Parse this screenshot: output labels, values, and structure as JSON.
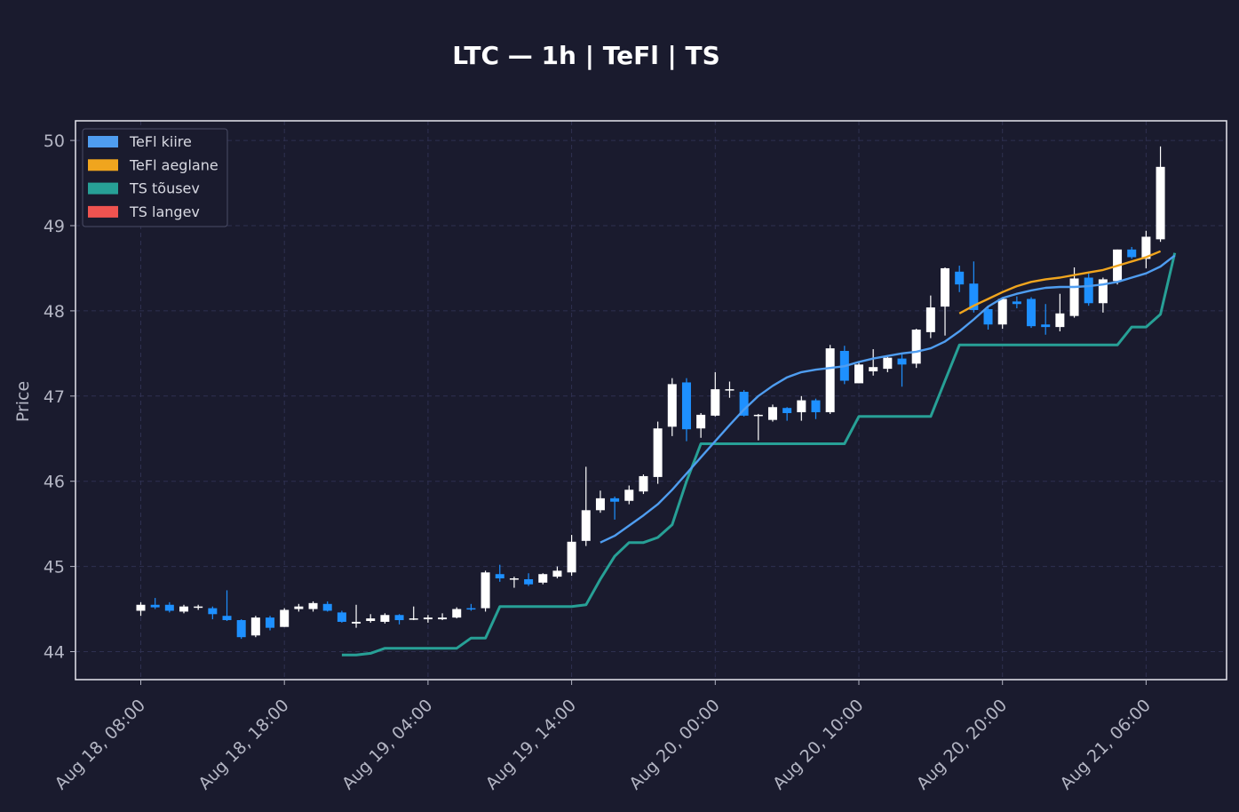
{
  "chart_data": {
    "type": "candlestick",
    "title": "LTC — 1h  |  TeFl  |  TS",
    "xlabel": "",
    "ylabel": "Price",
    "ylim": [
      43.67,
      50.23
    ],
    "yticks": [
      44,
      45,
      46,
      47,
      48,
      49,
      50
    ],
    "x_start": "Aug 18, 08:00",
    "x_step_hours": 1,
    "xticks": [
      {
        "label": "Aug 18, 08:00",
        "index": 0
      },
      {
        "label": "Aug 18, 18:00",
        "index": 10
      },
      {
        "label": "Aug 19, 04:00",
        "index": 20
      },
      {
        "label": "Aug 19, 14:00",
        "index": 30
      },
      {
        "label": "Aug 20, 00:00",
        "index": 40
      },
      {
        "label": "Aug 20, 10:00",
        "index": 50
      },
      {
        "label": "Aug 20, 20:00",
        "index": 60
      },
      {
        "label": "Aug 21, 06:00",
        "index": 70
      }
    ],
    "grid": true,
    "legend_position": "top-left",
    "colors": {
      "background": "#1a1b2e",
      "up_candle": "#ffffff",
      "down_candle": "#1e90ff",
      "tefl_fast": "#4f9df0",
      "tefl_slow": "#f0a51e",
      "ts_up": "#27a096",
      "ts_down": "#ef5350"
    },
    "legend": [
      {
        "label": "TeFl kiire",
        "color": "#4f9df0"
      },
      {
        "label": "TeFl aeglane",
        "color": "#f0a51e"
      },
      {
        "label": "TS tõusev",
        "color": "#27a096"
      },
      {
        "label": "TS langev",
        "color": "#ef5350"
      }
    ],
    "candles": [
      [
        44.48,
        44.58,
        44.42,
        44.55
      ],
      [
        44.55,
        44.63,
        44.5,
        44.52
      ],
      [
        44.55,
        44.58,
        44.46,
        44.48
      ],
      [
        44.47,
        44.55,
        44.45,
        44.53
      ],
      [
        44.52,
        44.55,
        44.49,
        44.53
      ],
      [
        44.51,
        44.53,
        44.38,
        44.44
      ],
      [
        44.42,
        44.72,
        44.36,
        44.37
      ],
      [
        44.37,
        44.38,
        44.15,
        44.17
      ],
      [
        44.19,
        44.42,
        44.17,
        44.4
      ],
      [
        44.4,
        44.42,
        44.25,
        44.28
      ],
      [
        44.29,
        44.51,
        44.29,
        44.49
      ],
      [
        44.5,
        44.56,
        44.47,
        44.53
      ],
      [
        44.5,
        44.59,
        44.47,
        44.57
      ],
      [
        44.56,
        44.59,
        44.47,
        44.48
      ],
      [
        44.46,
        44.48,
        44.34,
        44.35
      ],
      [
        44.33,
        44.55,
        44.28,
        44.35
      ],
      [
        44.36,
        44.44,
        44.34,
        44.39
      ],
      [
        44.35,
        44.45,
        44.33,
        44.43
      ],
      [
        44.43,
        44.44,
        44.32,
        44.37
      ],
      [
        44.38,
        44.53,
        44.37,
        44.39
      ],
      [
        44.38,
        44.43,
        44.34,
        44.4
      ],
      [
        44.38,
        44.45,
        44.37,
        44.4
      ],
      [
        44.4,
        44.52,
        44.39,
        44.5
      ],
      [
        44.51,
        44.56,
        44.48,
        44.5
      ],
      [
        44.51,
        44.95,
        44.47,
        44.93
      ],
      [
        44.91,
        45.02,
        44.82,
        44.86
      ],
      [
        44.86,
        44.88,
        44.75,
        44.86
      ],
      [
        44.85,
        44.92,
        44.77,
        44.79
      ],
      [
        44.81,
        44.92,
        44.79,
        44.91
      ],
      [
        44.88,
        45.0,
        44.86,
        44.95
      ],
      [
        44.93,
        45.37,
        44.89,
        45.29
      ],
      [
        45.3,
        46.17,
        45.24,
        45.66
      ],
      [
        45.66,
        45.89,
        45.63,
        45.8
      ],
      [
        45.8,
        45.82,
        45.55,
        45.76
      ],
      [
        45.77,
        45.95,
        45.73,
        45.9
      ],
      [
        45.88,
        46.08,
        45.85,
        46.06
      ],
      [
        46.05,
        46.7,
        45.97,
        46.62
      ],
      [
        46.64,
        47.21,
        46.53,
        47.14
      ],
      [
        47.16,
        47.21,
        46.47,
        46.61
      ],
      [
        46.62,
        46.8,
        46.51,
        46.78
      ],
      [
        46.77,
        47.28,
        46.76,
        47.08
      ],
      [
        47.08,
        47.17,
        46.98,
        47.08
      ],
      [
        47.05,
        47.07,
        46.76,
        46.77
      ],
      [
        46.77,
        46.79,
        46.48,
        46.78
      ],
      [
        46.72,
        46.9,
        46.7,
        46.87
      ],
      [
        46.86,
        46.87,
        46.71,
        46.8
      ],
      [
        46.81,
        47.0,
        46.71,
        46.95
      ],
      [
        46.95,
        46.97,
        46.73,
        46.81
      ],
      [
        46.81,
        47.6,
        46.79,
        47.56
      ],
      [
        47.53,
        47.59,
        47.14,
        47.18
      ],
      [
        47.15,
        47.41,
        47.15,
        47.37
      ],
      [
        47.29,
        47.55,
        47.24,
        47.34
      ],
      [
        47.32,
        47.46,
        47.28,
        47.45
      ],
      [
        47.44,
        47.49,
        47.11,
        47.37
      ],
      [
        47.38,
        47.79,
        47.33,
        47.78
      ],
      [
        47.75,
        48.18,
        47.68,
        48.04
      ],
      [
        48.05,
        48.51,
        47.71,
        48.5
      ],
      [
        48.46,
        48.53,
        48.22,
        48.31
      ],
      [
        48.32,
        48.58,
        47.98,
        48.01
      ],
      [
        48.02,
        48.05,
        47.78,
        47.84
      ],
      [
        47.84,
        48.15,
        47.79,
        48.14
      ],
      [
        48.11,
        48.17,
        48.03,
        48.08
      ],
      [
        48.14,
        48.16,
        47.8,
        47.82
      ],
      [
        47.84,
        48.08,
        47.72,
        47.81
      ],
      [
        47.81,
        48.2,
        47.76,
        47.97
      ],
      [
        47.94,
        48.51,
        47.92,
        48.38
      ],
      [
        48.39,
        48.44,
        48.06,
        48.09
      ],
      [
        48.09,
        48.39,
        47.98,
        48.37
      ],
      [
        48.35,
        48.72,
        48.31,
        48.72
      ],
      [
        48.72,
        48.75,
        48.61,
        48.63
      ],
      [
        48.61,
        48.94,
        48.5,
        48.87
      ],
      [
        48.84,
        49.93,
        48.81,
        49.69
      ]
    ],
    "series": [
      {
        "name": "TeFl kiire",
        "color": "#4f9df0",
        "start": 32,
        "values": [
          45.28,
          45.36,
          45.48,
          45.6,
          45.73,
          45.9,
          46.09,
          46.28,
          46.47,
          46.66,
          46.84,
          47.0,
          47.12,
          47.22,
          47.28,
          47.31,
          47.33,
          47.35,
          47.4,
          47.44,
          47.47,
          47.5,
          47.52,
          47.56,
          47.64,
          47.76,
          47.9,
          48.05,
          48.15,
          48.2,
          48.24,
          48.27,
          48.28,
          48.28,
          48.29,
          48.31,
          48.34,
          48.39,
          48.44,
          48.52,
          48.65
        ]
      },
      {
        "name": "TeFl aeglane",
        "color": "#f0a51e",
        "start": 57,
        "values": [
          47.97,
          48.06,
          48.14,
          48.22,
          48.29,
          48.34,
          48.37,
          48.39,
          48.42,
          48.45,
          48.48,
          48.53,
          48.58,
          48.63,
          48.7
        ]
      },
      {
        "name": "TS tõusev",
        "color": "#27a096",
        "start": 14,
        "values": [
          43.96,
          43.96,
          43.98,
          44.04,
          44.04,
          44.04,
          44.04,
          44.04,
          44.04,
          44.16,
          44.16,
          44.53,
          44.53,
          44.53,
          44.53,
          44.53,
          44.53,
          44.55,
          44.85,
          45.12,
          45.28,
          45.28,
          45.34,
          45.49,
          46.0,
          46.44,
          46.44,
          46.44,
          46.44,
          46.44,
          46.44,
          46.44,
          46.44,
          46.44,
          46.44,
          46.44,
          46.76,
          46.76,
          46.76,
          46.76,
          46.76,
          46.76,
          47.18,
          47.6,
          47.6,
          47.6,
          47.6,
          47.6,
          47.6,
          47.6,
          47.6,
          47.6,
          47.6,
          47.6,
          47.6,
          47.81,
          47.81,
          47.96,
          48.68
        ]
      }
    ]
  }
}
